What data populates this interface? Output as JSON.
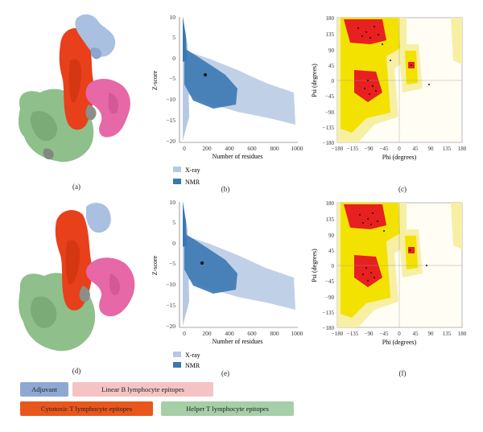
{
  "panels": {
    "a": "(a)",
    "b": "(b)",
    "c": "(c)",
    "d": "(d)",
    "e": "(e)",
    "f": "(f)"
  },
  "zscore": {
    "ylabel": "Z-score",
    "xlabel": "Number of residues",
    "yticks": [
      "10",
      "5",
      "0",
      "−5",
      "−10",
      "−15",
      "−20"
    ],
    "xticks": [
      "0",
      "200",
      "400",
      "600",
      "800",
      "1000"
    ],
    "legend": [
      {
        "label": "X-ray",
        "color": "#b5c9e3"
      },
      {
        "label": "NMR",
        "color": "#3a78b2"
      }
    ]
  },
  "rama": {
    "ylabel": "Psi (degrees)",
    "xlabel": "Phi (degrees)",
    "yticks": [
      "180",
      "135",
      "90",
      "45",
      "0",
      "−45",
      "−90",
      "−135",
      "−180"
    ],
    "xticks": [
      "−180",
      "−135",
      "−90",
      "−45",
      "0",
      "45",
      "90",
      "135",
      "180"
    ]
  },
  "legend": {
    "adjuvant": "Adjuvant",
    "linear_b": "Linear B lymphocyte epitopes",
    "ctl": "Cytotoxic T lymphocyte epitopes",
    "htl": "Helper T lymphocyte epitopes"
  },
  "colors": {
    "adjuvant": "#8fa8d2",
    "linear_b": "#f4c4c4",
    "ctl": "#e9561b",
    "htl": "#a6cfa8",
    "xray": "#b5c9e3",
    "nmr": "#3a78b2",
    "rama_core": "#e8201f",
    "rama_allowed": "#f3e200",
    "rama_generous": "#f7efa4"
  }
}
